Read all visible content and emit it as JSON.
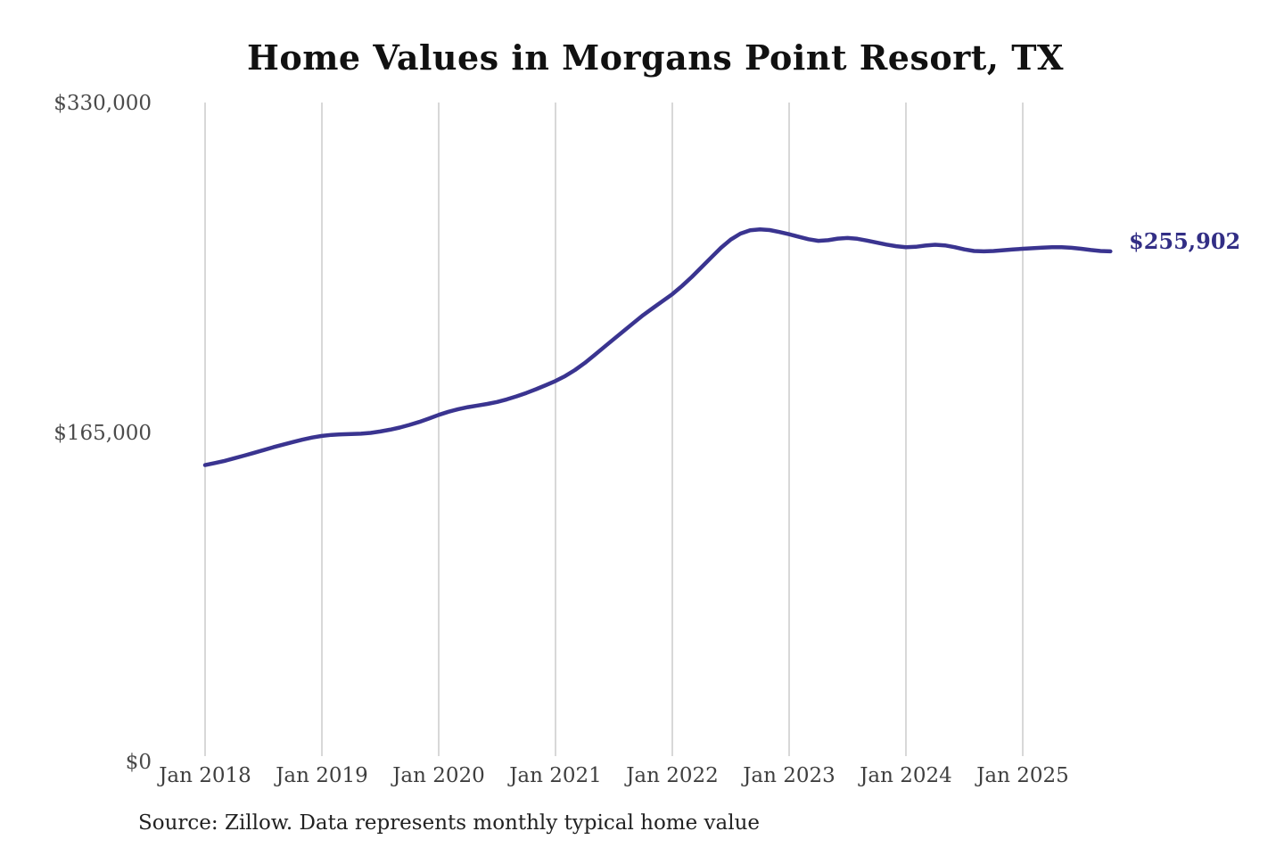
{
  "title": "Home Values in Morgans Point Resort, TX",
  "source_note": "Source: Zillow. Data represents monthly typical home value",
  "end_label": "$255,902",
  "y_axis": {
    "ticks": [
      "$330,000",
      "$165,000",
      "$0"
    ]
  },
  "colors": {
    "line": "#3a3490",
    "end_label": "#322e85",
    "grid": "#cccccc",
    "y_tick_text": "#4a4a4a",
    "x_tick_text": "#3f3f3f",
    "title_text": "#111111",
    "source_text": "#222222",
    "background": "#ffffff"
  },
  "chart_data": {
    "type": "line",
    "title": "Home Values in Morgans Point Resort, TX",
    "xlabel": "",
    "ylabel": "",
    "interval": "monthly",
    "x_start_month": "Jan 2018",
    "x_end_month": "Oct 2025",
    "xticks": [
      "Jan 2018",
      "Jan 2019",
      "Jan 2020",
      "Jan 2021",
      "Jan 2022",
      "Jan 2023",
      "Jan 2024",
      "Jan 2025"
    ],
    "ytick_labels": [
      "$0",
      "$165,000",
      "$330,000"
    ],
    "ytick_values": [
      0,
      165000,
      330000
    ],
    "ylim": [
      0,
      330000
    ],
    "grid": "vertical-only",
    "legend": "none",
    "final_value": 255902,
    "final_value_label": "$255,902",
    "peak_value": 266900,
    "peak_month": "Oct 2022",
    "series": [
      {
        "name": "Typical home value",
        "values": [
          148900,
          149900,
          151000,
          152300,
          153600,
          155000,
          156400,
          157800,
          159100,
          160400,
          161600,
          162700,
          163500,
          164000,
          164300,
          164400,
          164600,
          165000,
          165700,
          166600,
          167700,
          169000,
          170500,
          172200,
          174000,
          175600,
          176900,
          177900,
          178700,
          179500,
          180500,
          181800,
          183300,
          185000,
          186900,
          188900,
          191000,
          193500,
          196500,
          200000,
          204000,
          208000,
          212000,
          216000,
          220000,
          224000,
          227500,
          231000,
          234500,
          238600,
          243100,
          248000,
          252900,
          257700,
          261800,
          264800,
          266500,
          266900,
          266600,
          265600,
          264500,
          263200,
          262000,
          261200,
          261500,
          262300,
          262600,
          262200,
          261300,
          260300,
          259300,
          258500,
          258000,
          258200,
          258800,
          259200,
          258900,
          258000,
          256900,
          256100,
          255900,
          256100,
          256500,
          256900,
          257200,
          257500,
          257800,
          258000,
          258000,
          257700,
          257200,
          256600,
          256100,
          255902
        ]
      }
    ]
  }
}
